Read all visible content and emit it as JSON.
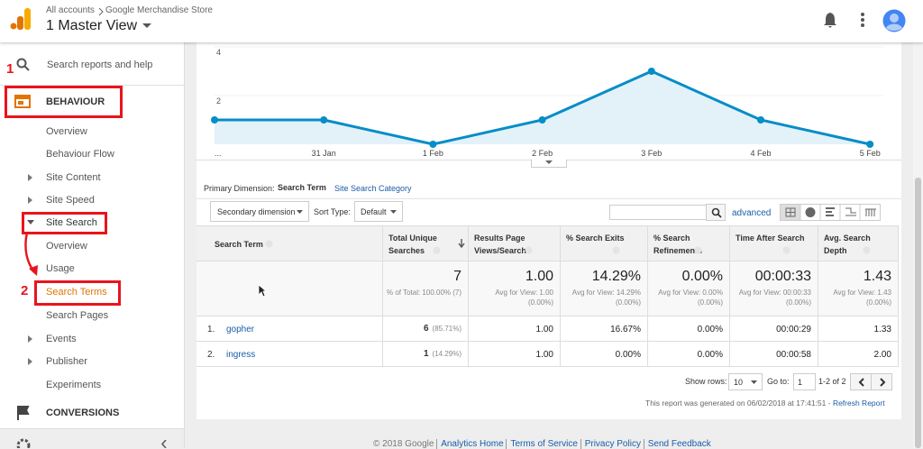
{
  "header": {
    "breadcrumb": [
      "All accounts",
      "Google Merchandise Store"
    ],
    "view": "1 Master View"
  },
  "sidebar": {
    "search": "Search reports and help",
    "section": "BEHAVIOUR",
    "items": [
      "Overview",
      "Behaviour Flow",
      "Site Content",
      "Site Speed",
      "Site Search",
      "Overview",
      "Usage",
      "Search Terms",
      "Search Pages",
      "Events",
      "Publisher",
      "Experiments"
    ],
    "conversions": "CONVERSIONS"
  },
  "annotations": [
    "1",
    "2"
  ],
  "chart": {
    "type": "line",
    "x": [
      "...",
      "31 Jan",
      "1 Feb",
      "2 Feb",
      "3 Feb",
      "4 Feb",
      "5 Feb"
    ],
    "values": [
      1,
      1,
      0,
      1,
      3,
      1,
      0
    ],
    "ylim": [
      0,
      4
    ],
    "yticks": [
      2,
      4
    ],
    "color": "#058dc7",
    "fill": "#e3f1f9"
  },
  "dimension": {
    "label": "Primary Dimension:",
    "options": [
      "Search Term",
      "Site Search Category"
    ]
  },
  "controls": {
    "secondary": "Secondary dimension",
    "sort_label": "Sort Type:",
    "sort": "Default",
    "advanced": "advanced"
  },
  "table": {
    "columns": [
      "Search Term",
      "Total Unique Searches",
      "Results Page Views/Search",
      "% Search Exits",
      "% Search Refinements",
      "Time After Search",
      "Avg. Search Depth"
    ],
    "totals": [
      {
        "value": "7",
        "note": "% of Total: 100.00% (7)"
      },
      {
        "value": "1.00",
        "note": "Avg for View: 1.00 (0.00%)"
      },
      {
        "value": "14.29%",
        "note": "Avg for View: 14.29% (0.00%)"
      },
      {
        "value": "0.00%",
        "note": "Avg for View: 0.00% (0.00%)"
      },
      {
        "value": "00:00:33",
        "note": "Avg for View: 00:00:33 (0.00%)"
      },
      {
        "value": "1.43",
        "note": "Avg for View: 1.43 (0.00%)"
      }
    ],
    "rows": [
      {
        "index": "1.",
        "term": "gopher",
        "searches": "6",
        "share": "(85.71%)",
        "cells": [
          "1.00",
          "16.67%",
          "0.00%",
          "00:00:29",
          "1.33"
        ]
      },
      {
        "index": "2.",
        "term": "ingress",
        "searches": "1",
        "share": "(14.29%)",
        "cells": [
          "1.00",
          "0.00%",
          "0.00%",
          "00:00:58",
          "2.00"
        ]
      }
    ]
  },
  "pagination": {
    "show_rows": "Show rows:",
    "rows": "10",
    "goto": "Go to:",
    "page": "1",
    "range": "1-2 of 2"
  },
  "report_note": "This report was generated on 06/02/2018 at 17:41:51 -",
  "refresh": "Refresh Report",
  "footer": [
    "© 2018 Google",
    "Analytics Home",
    "Terms of Service",
    "Privacy Policy",
    "Send Feedback"
  ]
}
